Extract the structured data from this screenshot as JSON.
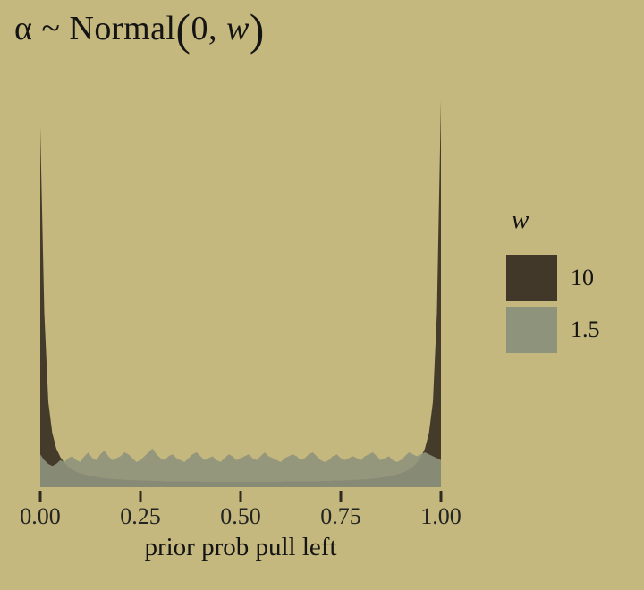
{
  "title": {
    "prefix": "α ~ Normal",
    "open_paren": "(",
    "args": "0, ",
    "param": "w",
    "close_paren": ")"
  },
  "colors": {
    "background": "#c5b87e",
    "text": "#141414",
    "tick": "#2e2a1f",
    "series_dark": "#3f3626",
    "series_green": "#8e937c"
  },
  "chart_data": {
    "type": "area",
    "title": "α ~ Normal(0, w)",
    "xlabel": "prior prob pull left",
    "ylabel": "",
    "xlim": [
      0,
      1
    ],
    "ylim": [
      0,
      1
    ],
    "y_units": "scaled density (max = 1)",
    "grid": false,
    "x_ticks": [
      {
        "value": 0.0,
        "label": "0.00"
      },
      {
        "value": 0.25,
        "label": "0.25"
      },
      {
        "value": 0.5,
        "label": "0.50"
      },
      {
        "value": 0.75,
        "label": "0.75"
      },
      {
        "value": 1.0,
        "label": "1.00"
      }
    ],
    "x": [
      0,
      0.01,
      0.02,
      0.03,
      0.04,
      0.05,
      0.06,
      0.07,
      0.08,
      0.09,
      0.1,
      0.11,
      0.12,
      0.13,
      0.14,
      0.15,
      0.16,
      0.17,
      0.18,
      0.19,
      0.2,
      0.21,
      0.22,
      0.23,
      0.24,
      0.25,
      0.26,
      0.27,
      0.28,
      0.29,
      0.3,
      0.31,
      0.32,
      0.33,
      0.34,
      0.35,
      0.36,
      0.37,
      0.38,
      0.39,
      0.4,
      0.41,
      0.42,
      0.43,
      0.44,
      0.45,
      0.46,
      0.47,
      0.48,
      0.49,
      0.5,
      0.51,
      0.52,
      0.53,
      0.54,
      0.55,
      0.56,
      0.57,
      0.58,
      0.59,
      0.6,
      0.61,
      0.62,
      0.63,
      0.64,
      0.65,
      0.66,
      0.67,
      0.68,
      0.69,
      0.7,
      0.71,
      0.72,
      0.73,
      0.74,
      0.75,
      0.76,
      0.77,
      0.78,
      0.79,
      0.8,
      0.81,
      0.82,
      0.83,
      0.84,
      0.85,
      0.86,
      0.87,
      0.88,
      0.89,
      0.9,
      0.91,
      0.92,
      0.93,
      0.94,
      0.95,
      0.96,
      0.97,
      0.98,
      0.99,
      1.0
    ],
    "series": [
      {
        "name": "10",
        "color": "#3f3626",
        "opacity": 0.96,
        "values": [
          0.93,
          0.45,
          0.22,
          0.14,
          0.1,
          0.078,
          0.063,
          0.053,
          0.046,
          0.04,
          0.036,
          0.033,
          0.03,
          0.028,
          0.026,
          0.025,
          0.023,
          0.022,
          0.021,
          0.02,
          0.02,
          0.019,
          0.019,
          0.018,
          0.018,
          0.017,
          0.017,
          0.017,
          0.016,
          0.016,
          0.016,
          0.015,
          0.015,
          0.015,
          0.015,
          0.015,
          0.015,
          0.015,
          0.015,
          0.015,
          0.014,
          0.014,
          0.014,
          0.014,
          0.014,
          0.014,
          0.014,
          0.014,
          0.014,
          0.014,
          0.014,
          0.014,
          0.014,
          0.014,
          0.014,
          0.014,
          0.014,
          0.014,
          0.014,
          0.014,
          0.014,
          0.015,
          0.015,
          0.015,
          0.015,
          0.015,
          0.015,
          0.015,
          0.015,
          0.015,
          0.016,
          0.016,
          0.016,
          0.017,
          0.017,
          0.017,
          0.018,
          0.018,
          0.019,
          0.019,
          0.02,
          0.02,
          0.021,
          0.022,
          0.023,
          0.025,
          0.026,
          0.028,
          0.03,
          0.033,
          0.036,
          0.04,
          0.046,
          0.053,
          0.063,
          0.078,
          0.1,
          0.14,
          0.22,
          0.45,
          1.0
        ]
      },
      {
        "name": "1.5",
        "color": "#8e937c",
        "opacity": 0.9,
        "values": [
          0.085,
          0.07,
          0.06,
          0.055,
          0.06,
          0.07,
          0.065,
          0.075,
          0.08,
          0.07,
          0.065,
          0.08,
          0.09,
          0.075,
          0.07,
          0.085,
          0.095,
          0.08,
          0.07,
          0.075,
          0.08,
          0.09,
          0.085,
          0.075,
          0.065,
          0.07,
          0.08,
          0.09,
          0.1,
          0.085,
          0.075,
          0.07,
          0.08,
          0.085,
          0.075,
          0.07,
          0.065,
          0.075,
          0.085,
          0.09,
          0.08,
          0.07,
          0.075,
          0.08,
          0.07,
          0.065,
          0.075,
          0.085,
          0.08,
          0.07,
          0.075,
          0.08,
          0.085,
          0.075,
          0.07,
          0.08,
          0.09,
          0.08,
          0.075,
          0.07,
          0.065,
          0.075,
          0.08,
          0.085,
          0.08,
          0.07,
          0.075,
          0.085,
          0.09,
          0.08,
          0.07,
          0.065,
          0.07,
          0.08,
          0.085,
          0.075,
          0.07,
          0.075,
          0.08,
          0.075,
          0.07,
          0.08,
          0.085,
          0.09,
          0.08,
          0.07,
          0.075,
          0.08,
          0.07,
          0.065,
          0.07,
          0.08,
          0.09,
          0.085,
          0.08,
          0.085,
          0.09,
          0.085,
          0.08,
          0.075,
          0.07
        ]
      }
    ],
    "legend": {
      "title": "w",
      "position": "right",
      "entries": [
        {
          "label": "10",
          "color": "#423829"
        },
        {
          "label": "1.5",
          "color": "#8e937c"
        }
      ]
    }
  }
}
